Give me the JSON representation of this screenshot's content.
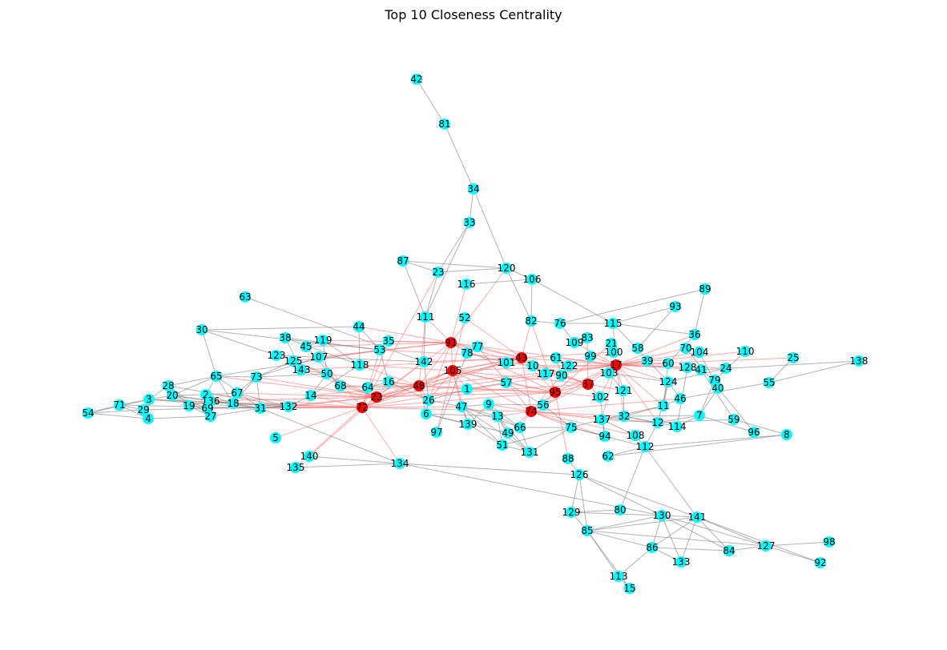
{
  "title": "Top 10 Closeness Centrality",
  "colors": {
    "node": "#00ffff",
    "top_node": "#ff0000",
    "edge": "#808080",
    "top_edge": "#ff6666",
    "background": "#ffffff"
  },
  "diagram": {
    "type": "network",
    "highlighted": [
      "91",
      "43",
      "17",
      "48",
      "105",
      "22",
      "72",
      "37",
      "95",
      "74"
    ],
    "nodes": [
      {
        "id": "42"
      },
      {
        "id": "81"
      },
      {
        "id": "34"
      },
      {
        "id": "33"
      },
      {
        "id": "87"
      },
      {
        "id": "23"
      },
      {
        "id": "120"
      },
      {
        "id": "116"
      },
      {
        "id": "106"
      },
      {
        "id": "89"
      },
      {
        "id": "63"
      },
      {
        "id": "93"
      },
      {
        "id": "111"
      },
      {
        "id": "52"
      },
      {
        "id": "82"
      },
      {
        "id": "76"
      },
      {
        "id": "115"
      },
      {
        "id": "30"
      },
      {
        "id": "44"
      },
      {
        "id": "36"
      },
      {
        "id": "38"
      },
      {
        "id": "119"
      },
      {
        "id": "35"
      },
      {
        "id": "91"
      },
      {
        "id": "77"
      },
      {
        "id": "109"
      },
      {
        "id": "83"
      },
      {
        "id": "21"
      },
      {
        "id": "58"
      },
      {
        "id": "70"
      },
      {
        "id": "104"
      },
      {
        "id": "110"
      },
      {
        "id": "45"
      },
      {
        "id": "53"
      },
      {
        "id": "78"
      },
      {
        "id": "43"
      },
      {
        "id": "99"
      },
      {
        "id": "100"
      },
      {
        "id": "25"
      },
      {
        "id": "123"
      },
      {
        "id": "125"
      },
      {
        "id": "107"
      },
      {
        "id": "142"
      },
      {
        "id": "61"
      },
      {
        "id": "122"
      },
      {
        "id": "17"
      },
      {
        "id": "39"
      },
      {
        "id": "60"
      },
      {
        "id": "128"
      },
      {
        "id": "41"
      },
      {
        "id": "24"
      },
      {
        "id": "138"
      },
      {
        "id": "143"
      },
      {
        "id": "118"
      },
      {
        "id": "101"
      },
      {
        "id": "10"
      },
      {
        "id": "105"
      },
      {
        "id": "117"
      },
      {
        "id": "90"
      },
      {
        "id": "103"
      },
      {
        "id": "79"
      },
      {
        "id": "65"
      },
      {
        "id": "73"
      },
      {
        "id": "50"
      },
      {
        "id": "16"
      },
      {
        "id": "57"
      },
      {
        "id": "37"
      },
      {
        "id": "124"
      },
      {
        "id": "55"
      },
      {
        "id": "40"
      },
      {
        "id": "28"
      },
      {
        "id": "68"
      },
      {
        "id": "64"
      },
      {
        "id": "48"
      },
      {
        "id": "1"
      },
      {
        "id": "95"
      },
      {
        "id": "121"
      },
      {
        "id": "2"
      },
      {
        "id": "67"
      },
      {
        "id": "14"
      },
      {
        "id": "22"
      },
      {
        "id": "102"
      },
      {
        "id": "46"
      },
      {
        "id": "3"
      },
      {
        "id": "20"
      },
      {
        "id": "136"
      },
      {
        "id": "18"
      },
      {
        "id": "26"
      },
      {
        "id": "56"
      },
      {
        "id": "11"
      },
      {
        "id": "71"
      },
      {
        "id": "19"
      },
      {
        "id": "69"
      },
      {
        "id": "31"
      },
      {
        "id": "132"
      },
      {
        "id": "72"
      },
      {
        "id": "47"
      },
      {
        "id": "9"
      },
      {
        "id": "74"
      },
      {
        "id": "7"
      },
      {
        "id": "54"
      },
      {
        "id": "29"
      },
      {
        "id": "4"
      },
      {
        "id": "27"
      },
      {
        "id": "6"
      },
      {
        "id": "13"
      },
      {
        "id": "32"
      },
      {
        "id": "137"
      },
      {
        "id": "59"
      },
      {
        "id": "139"
      },
      {
        "id": "66"
      },
      {
        "id": "75"
      },
      {
        "id": "12"
      },
      {
        "id": "114"
      },
      {
        "id": "49"
      },
      {
        "id": "96"
      },
      {
        "id": "8"
      },
      {
        "id": "97"
      },
      {
        "id": "94"
      },
      {
        "id": "108"
      },
      {
        "id": "5"
      },
      {
        "id": "51"
      },
      {
        "id": "112"
      },
      {
        "id": "131"
      },
      {
        "id": "140"
      },
      {
        "id": "62"
      },
      {
        "id": "88"
      },
      {
        "id": "135"
      },
      {
        "id": "134"
      },
      {
        "id": "126"
      },
      {
        "id": "80"
      },
      {
        "id": "129"
      },
      {
        "id": "130"
      },
      {
        "id": "141"
      },
      {
        "id": "85"
      },
      {
        "id": "98"
      },
      {
        "id": "127"
      },
      {
        "id": "86"
      },
      {
        "id": "84"
      },
      {
        "id": "133"
      },
      {
        "id": "92"
      },
      {
        "id": "113"
      },
      {
        "id": "15"
      }
    ]
  }
}
